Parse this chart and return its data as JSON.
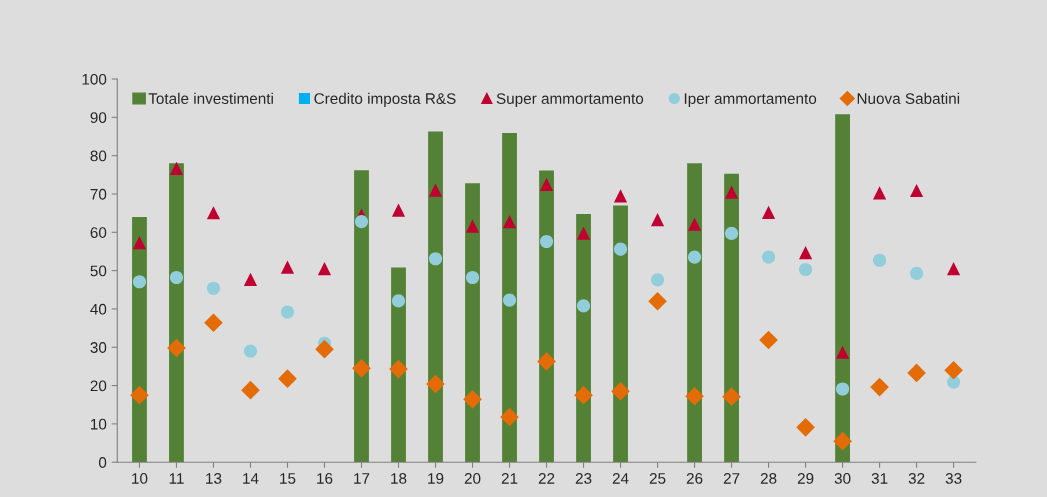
{
  "chart_data": {
    "type": "bar",
    "categories": [
      "10",
      "11",
      "13",
      "14",
      "15",
      "16",
      "17",
      "18",
      "19",
      "20",
      "21",
      "22",
      "23",
      "24",
      "25",
      "26",
      "27",
      "28",
      "29",
      "30",
      "31",
      "32",
      "33"
    ],
    "series": [
      {
        "name": "Totale investimenti",
        "color": "#538135",
        "values": [
          64.0,
          78.0,
          null,
          null,
          null,
          null,
          76.2,
          50.8,
          86.3,
          72.8,
          85.9,
          76.1,
          64.8,
          67.0,
          null,
          78.0,
          75.3,
          null,
          null,
          90.8,
          null,
          null,
          null
        ]
      },
      {
        "name": "Credito imposta R&S",
        "type": "scatter",
        "marker": "square",
        "color": "#00b0f0",
        "values": [
          null,
          null,
          null,
          null,
          null,
          null,
          null,
          null,
          null,
          null,
          null,
          null,
          null,
          null,
          null,
          null,
          null,
          null,
          null,
          null,
          null,
          null,
          null
        ]
      },
      {
        "name": "Super ammortamento",
        "type": "scatter",
        "marker": "triangle",
        "color": "#c00030",
        "values": [
          57.3,
          76.7,
          65.1,
          47.7,
          50.9,
          50.5,
          64.5,
          65.8,
          71.0,
          61.6,
          62.8,
          72.5,
          59.8,
          69.5,
          63.3,
          62.1,
          70.5,
          65.2,
          54.7,
          28.7,
          70.3,
          70.9,
          50.5
        ]
      },
      {
        "name": "Iper ammortamento",
        "type": "scatter",
        "marker": "circle",
        "color": "#92cddc",
        "values": [
          47.1,
          48.2,
          45.4,
          29.0,
          39.2,
          31.0,
          62.8,
          42.1,
          53.1,
          48.2,
          42.3,
          57.6,
          40.8,
          55.6,
          47.6,
          53.5,
          59.7,
          53.5,
          50.3,
          19.1,
          52.7,
          49.3,
          20.9
        ]
      },
      {
        "name": "Nuova Sabatini",
        "type": "scatter",
        "marker": "diamond",
        "color": "#e36c09",
        "values": [
          17.5,
          29.8,
          36.4,
          18.8,
          21.8,
          29.5,
          24.5,
          24.3,
          20.4,
          16.4,
          11.8,
          26.3,
          17.5,
          18.5,
          42.0,
          17.2,
          17.1,
          31.9,
          9.1,
          5.5,
          19.6,
          23.3,
          24.0
        ]
      }
    ],
    "ylim": [
      0,
      100
    ],
    "yticks": [
      0,
      10,
      20,
      30,
      40,
      50,
      60,
      70,
      80,
      90,
      100
    ],
    "grid": false,
    "legend": "top"
  }
}
